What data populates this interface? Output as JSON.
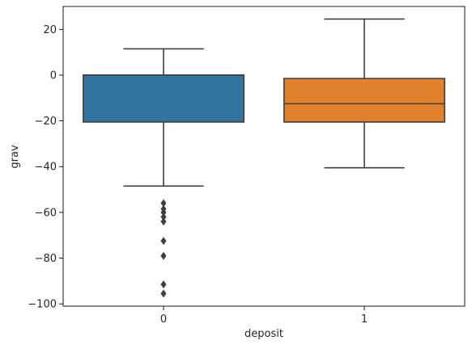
{
  "chart_data": {
    "type": "box",
    "xlabel": "deposit",
    "ylabel": "grav",
    "ylim": [
      -101,
      30
    ],
    "yticks": [
      20,
      0,
      -20,
      -40,
      -60,
      -80,
      -100
    ],
    "ytick_labels": [
      "20",
      "0",
      "−20",
      "−40",
      "−60",
      "−80",
      "−100"
    ],
    "categories": [
      "0",
      "1"
    ],
    "boxes": [
      {
        "category": "0",
        "color": "#3274a1",
        "whisker_low": -48.5,
        "q1": -20.5,
        "median": 0,
        "q3": 0,
        "whisker_high": 11.5,
        "outliers": [
          -56,
          -58.5,
          -60,
          -62,
          -64,
          -72.5,
          -79,
          -91.5,
          -95.5
        ]
      },
      {
        "category": "1",
        "color": "#e1812c",
        "whisker_low": -40.5,
        "q1": -20.5,
        "median": -12.5,
        "q3": -1.5,
        "whisker_high": 24.5,
        "outliers": []
      }
    ],
    "grid": false,
    "legend": "none"
  }
}
